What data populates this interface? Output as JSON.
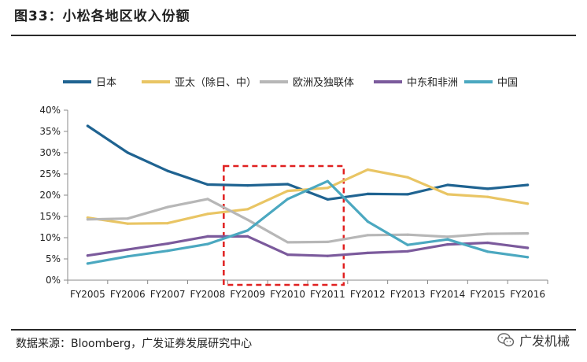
{
  "figure": {
    "title": "图33：小松各地区收入份额",
    "source": "数据来源：Bloomberg，广发证券发展研究中心",
    "watermark": "广发机械"
  },
  "colors": {
    "series": [
      "#1f6391",
      "#e9c564",
      "#b7b7b7",
      "#7b5a9c",
      "#4ba8c0"
    ],
    "highlight_box": "#e02020",
    "axis": "#888888"
  },
  "chart_data": {
    "type": "line",
    "title": "",
    "xlabel": "",
    "ylabel": "",
    "ylim": [
      0,
      40
    ],
    "y_ticks": [
      "0%",
      "5%",
      "10%",
      "15%",
      "20%",
      "25%",
      "30%",
      "35%",
      "40%"
    ],
    "y_tick_values": [
      0,
      5,
      10,
      15,
      20,
      25,
      30,
      35,
      40
    ],
    "grid": false,
    "legend_position": "top",
    "categories": [
      "FY2005",
      "FY2006",
      "FY2007",
      "FY2008",
      "FY2009",
      "FY2010",
      "FY2011",
      "FY2012",
      "FY2013",
      "FY2014",
      "FY2015",
      "FY2016"
    ],
    "series": [
      {
        "name": "日本",
        "values": [
          36.3,
          30.0,
          25.7,
          22.5,
          22.3,
          22.6,
          19.0,
          20.3,
          20.2,
          22.4,
          21.5,
          22.4
        ]
      },
      {
        "name": "亚太（除日、中）",
        "values": [
          14.7,
          13.3,
          13.4,
          15.6,
          16.7,
          21.0,
          21.7,
          26.0,
          24.2,
          20.2,
          19.6,
          18.0
        ]
      },
      {
        "name": "欧洲及独联体",
        "values": [
          14.3,
          14.5,
          17.2,
          19.1,
          14.2,
          8.9,
          9.0,
          10.6,
          10.7,
          10.2,
          10.9,
          11.0
        ]
      },
      {
        "name": "中东和非洲",
        "values": [
          5.8,
          7.2,
          8.6,
          10.3,
          10.3,
          6.0,
          5.7,
          6.4,
          6.8,
          8.4,
          8.8,
          7.6
        ]
      },
      {
        "name": "中国",
        "values": [
          3.9,
          5.6,
          6.9,
          8.5,
          11.7,
          19.1,
          23.3,
          13.8,
          8.3,
          9.6,
          6.7,
          5.4
        ]
      }
    ],
    "highlight_range": {
      "from": "FY2009",
      "to": "FY2011"
    }
  }
}
